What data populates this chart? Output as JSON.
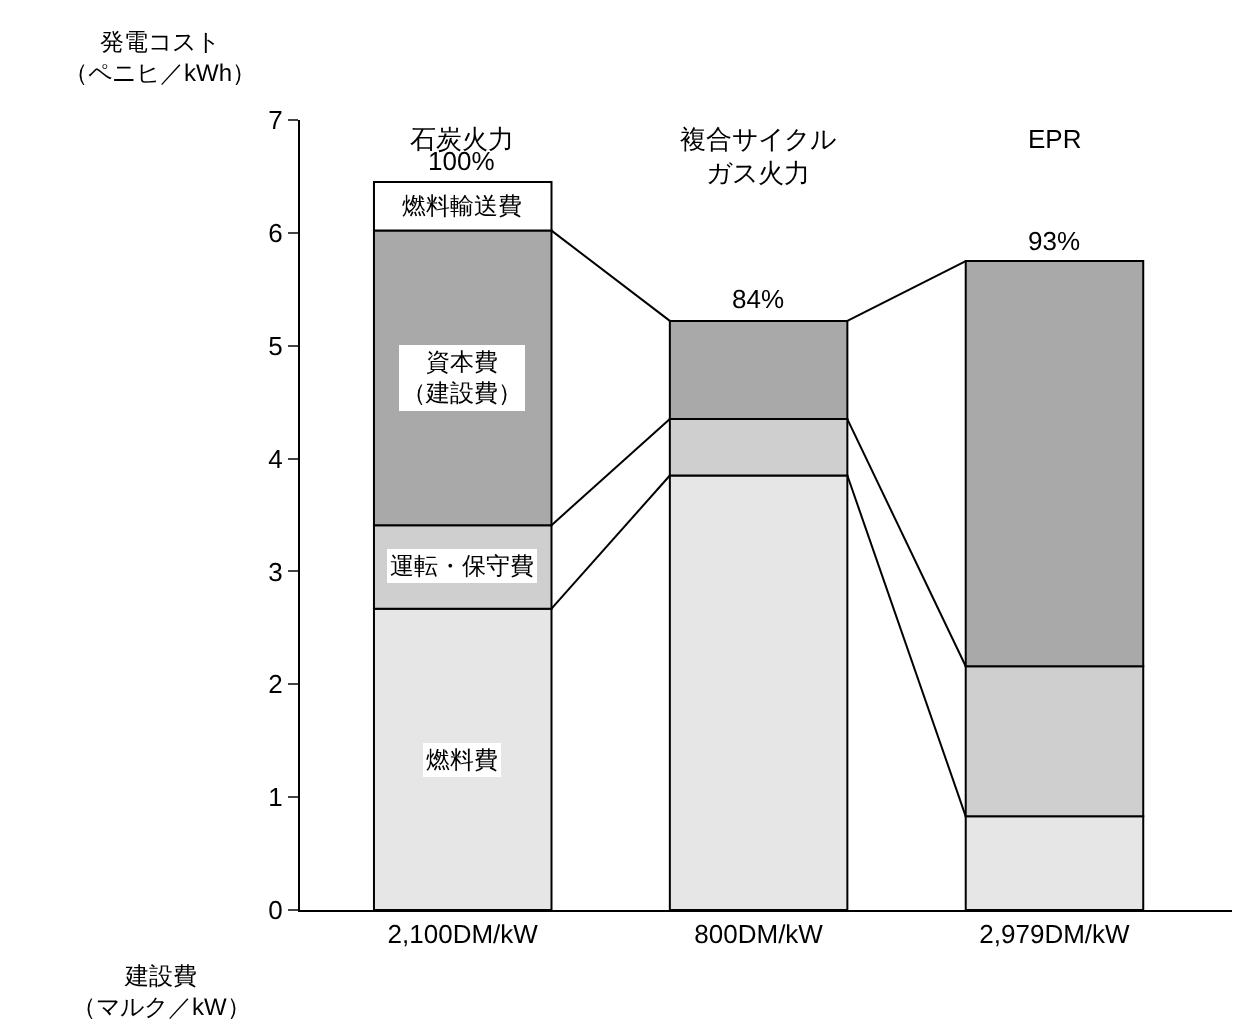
{
  "chart_data": {
    "type": "bar",
    "stacked": true,
    "categories": [
      "2,100DM/kW",
      "800DM/kW",
      "2,979DM/kW"
    ],
    "annotations": [
      "石炭火力",
      "複合サイクルガス火力",
      "EPR",
      {
        "text": "100%",
        "x": "2,100DM/kW",
        "y": 6.45
      },
      {
        "text": "84%",
        "x": "800DM/kW",
        "y": 5.22
      },
      {
        "text": "93%",
        "x": "2,979DM/kW",
        "y": 5.75
      }
    ],
    "xlabel": "建設費（マルク／kW）",
    "ylabel": "発電コスト（ペニヒ／kWh）",
    "series": [
      {
        "name": "燃料費",
        "color": "#e6e6e6",
        "values": [
          2.67,
          3.85,
          0.83
        ]
      },
      {
        "name": "運転・保守費",
        "color": "#cfcfcf",
        "values": [
          0.74,
          0.5,
          1.33
        ]
      },
      {
        "name": "資本費（建設費）",
        "color": "#a9a9a9",
        "values": [
          2.61,
          0.87,
          3.59
        ]
      },
      {
        "name": "燃料輸送費",
        "color": "#ffffff",
        "values": [
          0.43,
          null,
          null
        ]
      }
    ],
    "ylim": [
      0,
      7
    ],
    "yticks": [
      0,
      1,
      2,
      3,
      4,
      5,
      6,
      7
    ]
  }
}
